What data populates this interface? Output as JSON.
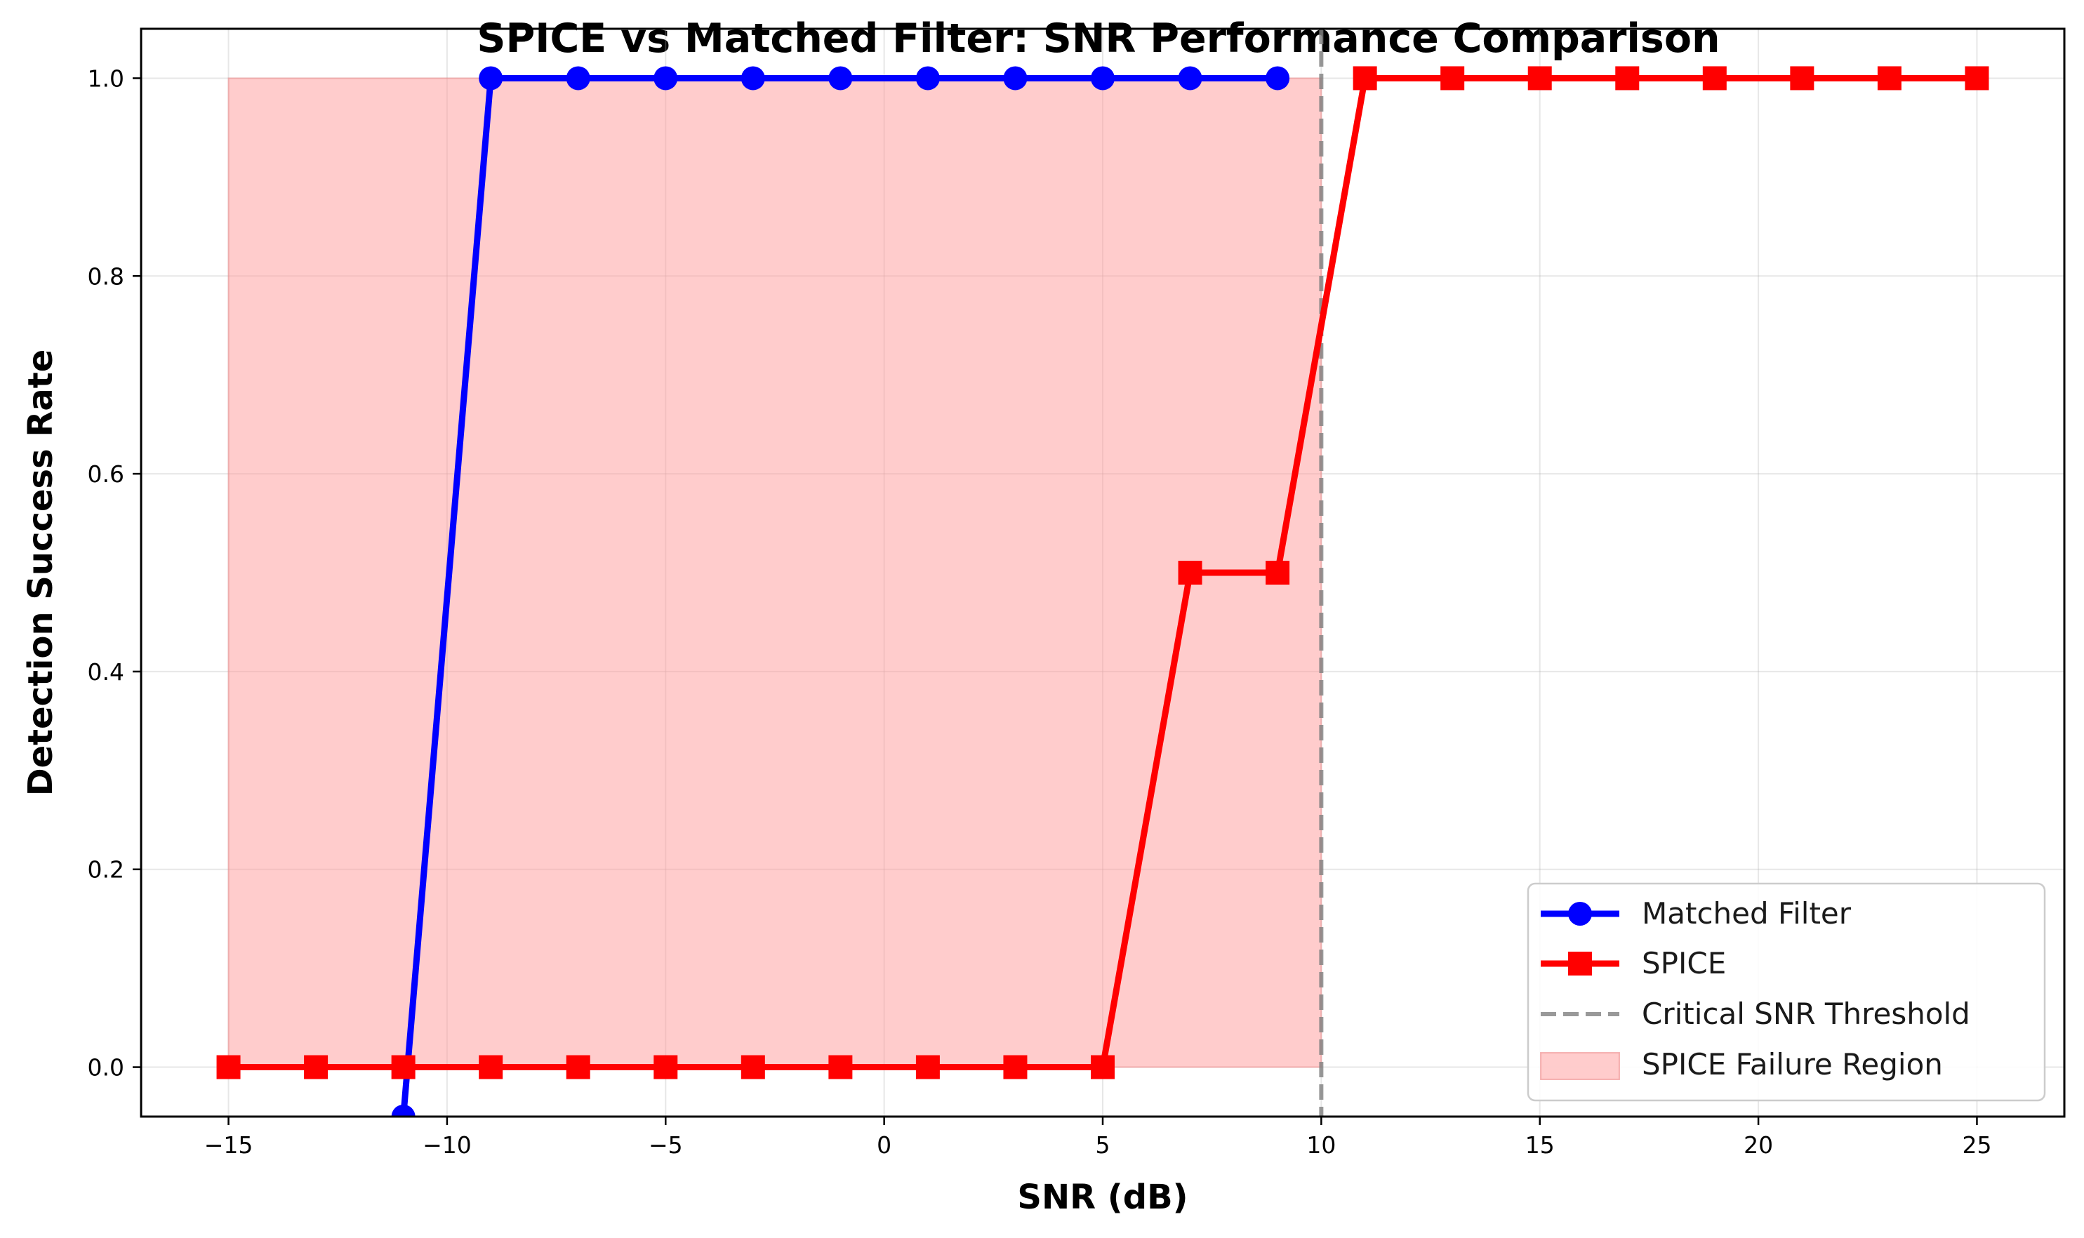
{
  "chart_data": {
    "type": "line",
    "title": "SPICE vs Matched Filter: SNR Performance Comparison",
    "xlabel": "SNR (dB)",
    "ylabel": "Detection Success Rate",
    "xlim": [
      -17,
      27
    ],
    "ylim": [
      -0.05,
      1.05
    ],
    "x_ticks": [
      -15,
      -10,
      -5,
      0,
      5,
      10,
      15,
      20,
      25
    ],
    "x_tick_labels": [
      "−15",
      "−10",
      "−5",
      "0",
      "5",
      "10",
      "15",
      "20",
      "25"
    ],
    "y_ticks": [
      0.0,
      0.2,
      0.4,
      0.6,
      0.8,
      1.0
    ],
    "y_tick_labels": [
      "0.0",
      "0.2",
      "0.4",
      "0.6",
      "0.8",
      "1.0"
    ],
    "grid": true,
    "legend_position": "lower-right",
    "series": [
      {
        "name": "Matched Filter",
        "color": "#0000ff",
        "marker": "circle",
        "x": [
          -11,
          -9,
          -7,
          -5,
          -3,
          -1,
          1,
          3,
          5,
          7,
          9
        ],
        "y": [
          -0.05,
          1.0,
          1.0,
          1.0,
          1.0,
          1.0,
          1.0,
          1.0,
          1.0,
          1.0,
          1.0
        ]
      },
      {
        "name": "SPICE",
        "color": "#ff0000",
        "marker": "square",
        "x": [
          -15,
          -13,
          -11,
          -9,
          -7,
          -5,
          -3,
          -1,
          1,
          3,
          5,
          7,
          9,
          11,
          13,
          15,
          17,
          19,
          21,
          23,
          25
        ],
        "y": [
          0,
          0,
          0,
          0,
          0,
          0,
          0,
          0,
          0,
          0,
          0,
          0.5,
          0.5,
          1.0,
          1.0,
          1.0,
          1.0,
          1.0,
          1.0,
          1.0,
          1.0
        ]
      }
    ],
    "threshold": {
      "name": "Critical SNR Threshold",
      "x": 10,
      "color": "#808080",
      "style": "dashed"
    },
    "region": {
      "name": "SPICE Failure Region",
      "x": [
        -15,
        10
      ],
      "y": [
        0,
        1.0
      ],
      "color": "#ff9999"
    }
  }
}
